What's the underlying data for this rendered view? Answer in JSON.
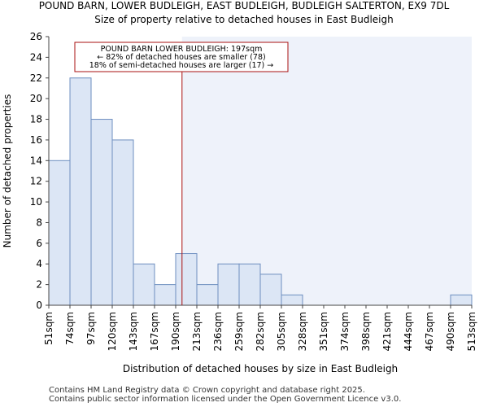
{
  "chart_data": {
    "type": "bar",
    "title": "POUND BARN, LOWER BUDLEIGH, EAST BUDLEIGH, BUDLEIGH SALTERTON, EX9 7DL",
    "subtitle": "Size of property relative to detached houses in East Budleigh",
    "xlabel": "Distribution of detached houses by size in East Budleigh",
    "ylabel": "Number of detached properties",
    "bin_edges": [
      "51sqm",
      "74sqm",
      "97sqm",
      "120sqm",
      "143sqm",
      "167sqm",
      "190sqm",
      "213sqm",
      "236sqm",
      "259sqm",
      "282sqm",
      "305sqm",
      "328sqm",
      "351sqm",
      "374sqm",
      "398sqm",
      "421sqm",
      "444sqm",
      "467sqm",
      "490sqm",
      "513sqm"
    ],
    "values": [
      14,
      22,
      18,
      16,
      4,
      2,
      5,
      2,
      4,
      4,
      3,
      1,
      0,
      0,
      0,
      0,
      0,
      0,
      0,
      1
    ],
    "yticks": [
      0,
      2,
      4,
      6,
      8,
      10,
      12,
      14,
      16,
      18,
      20,
      22,
      24,
      26
    ],
    "ylim": [
      0,
      26
    ],
    "property_value": 197,
    "property_marker_bin_position": 6.3,
    "annotation": {
      "line1": "POUND BARN LOWER BUDLEIGH: 197sqm",
      "line2": "← 82% of detached houses are smaller (78)",
      "line3": "18% of semi-detached houses are larger (17) →"
    },
    "colors": {
      "bar_fill": "#dce6f5",
      "bar_edge": "#6e8fc0",
      "shade": "#eef2fa",
      "marker": "#aa1111"
    }
  },
  "footer": {
    "line1": "Contains HM Land Registry data © Crown copyright and database right 2025.",
    "line2": "Contains public sector information licensed under the Open Government Licence v3.0."
  }
}
